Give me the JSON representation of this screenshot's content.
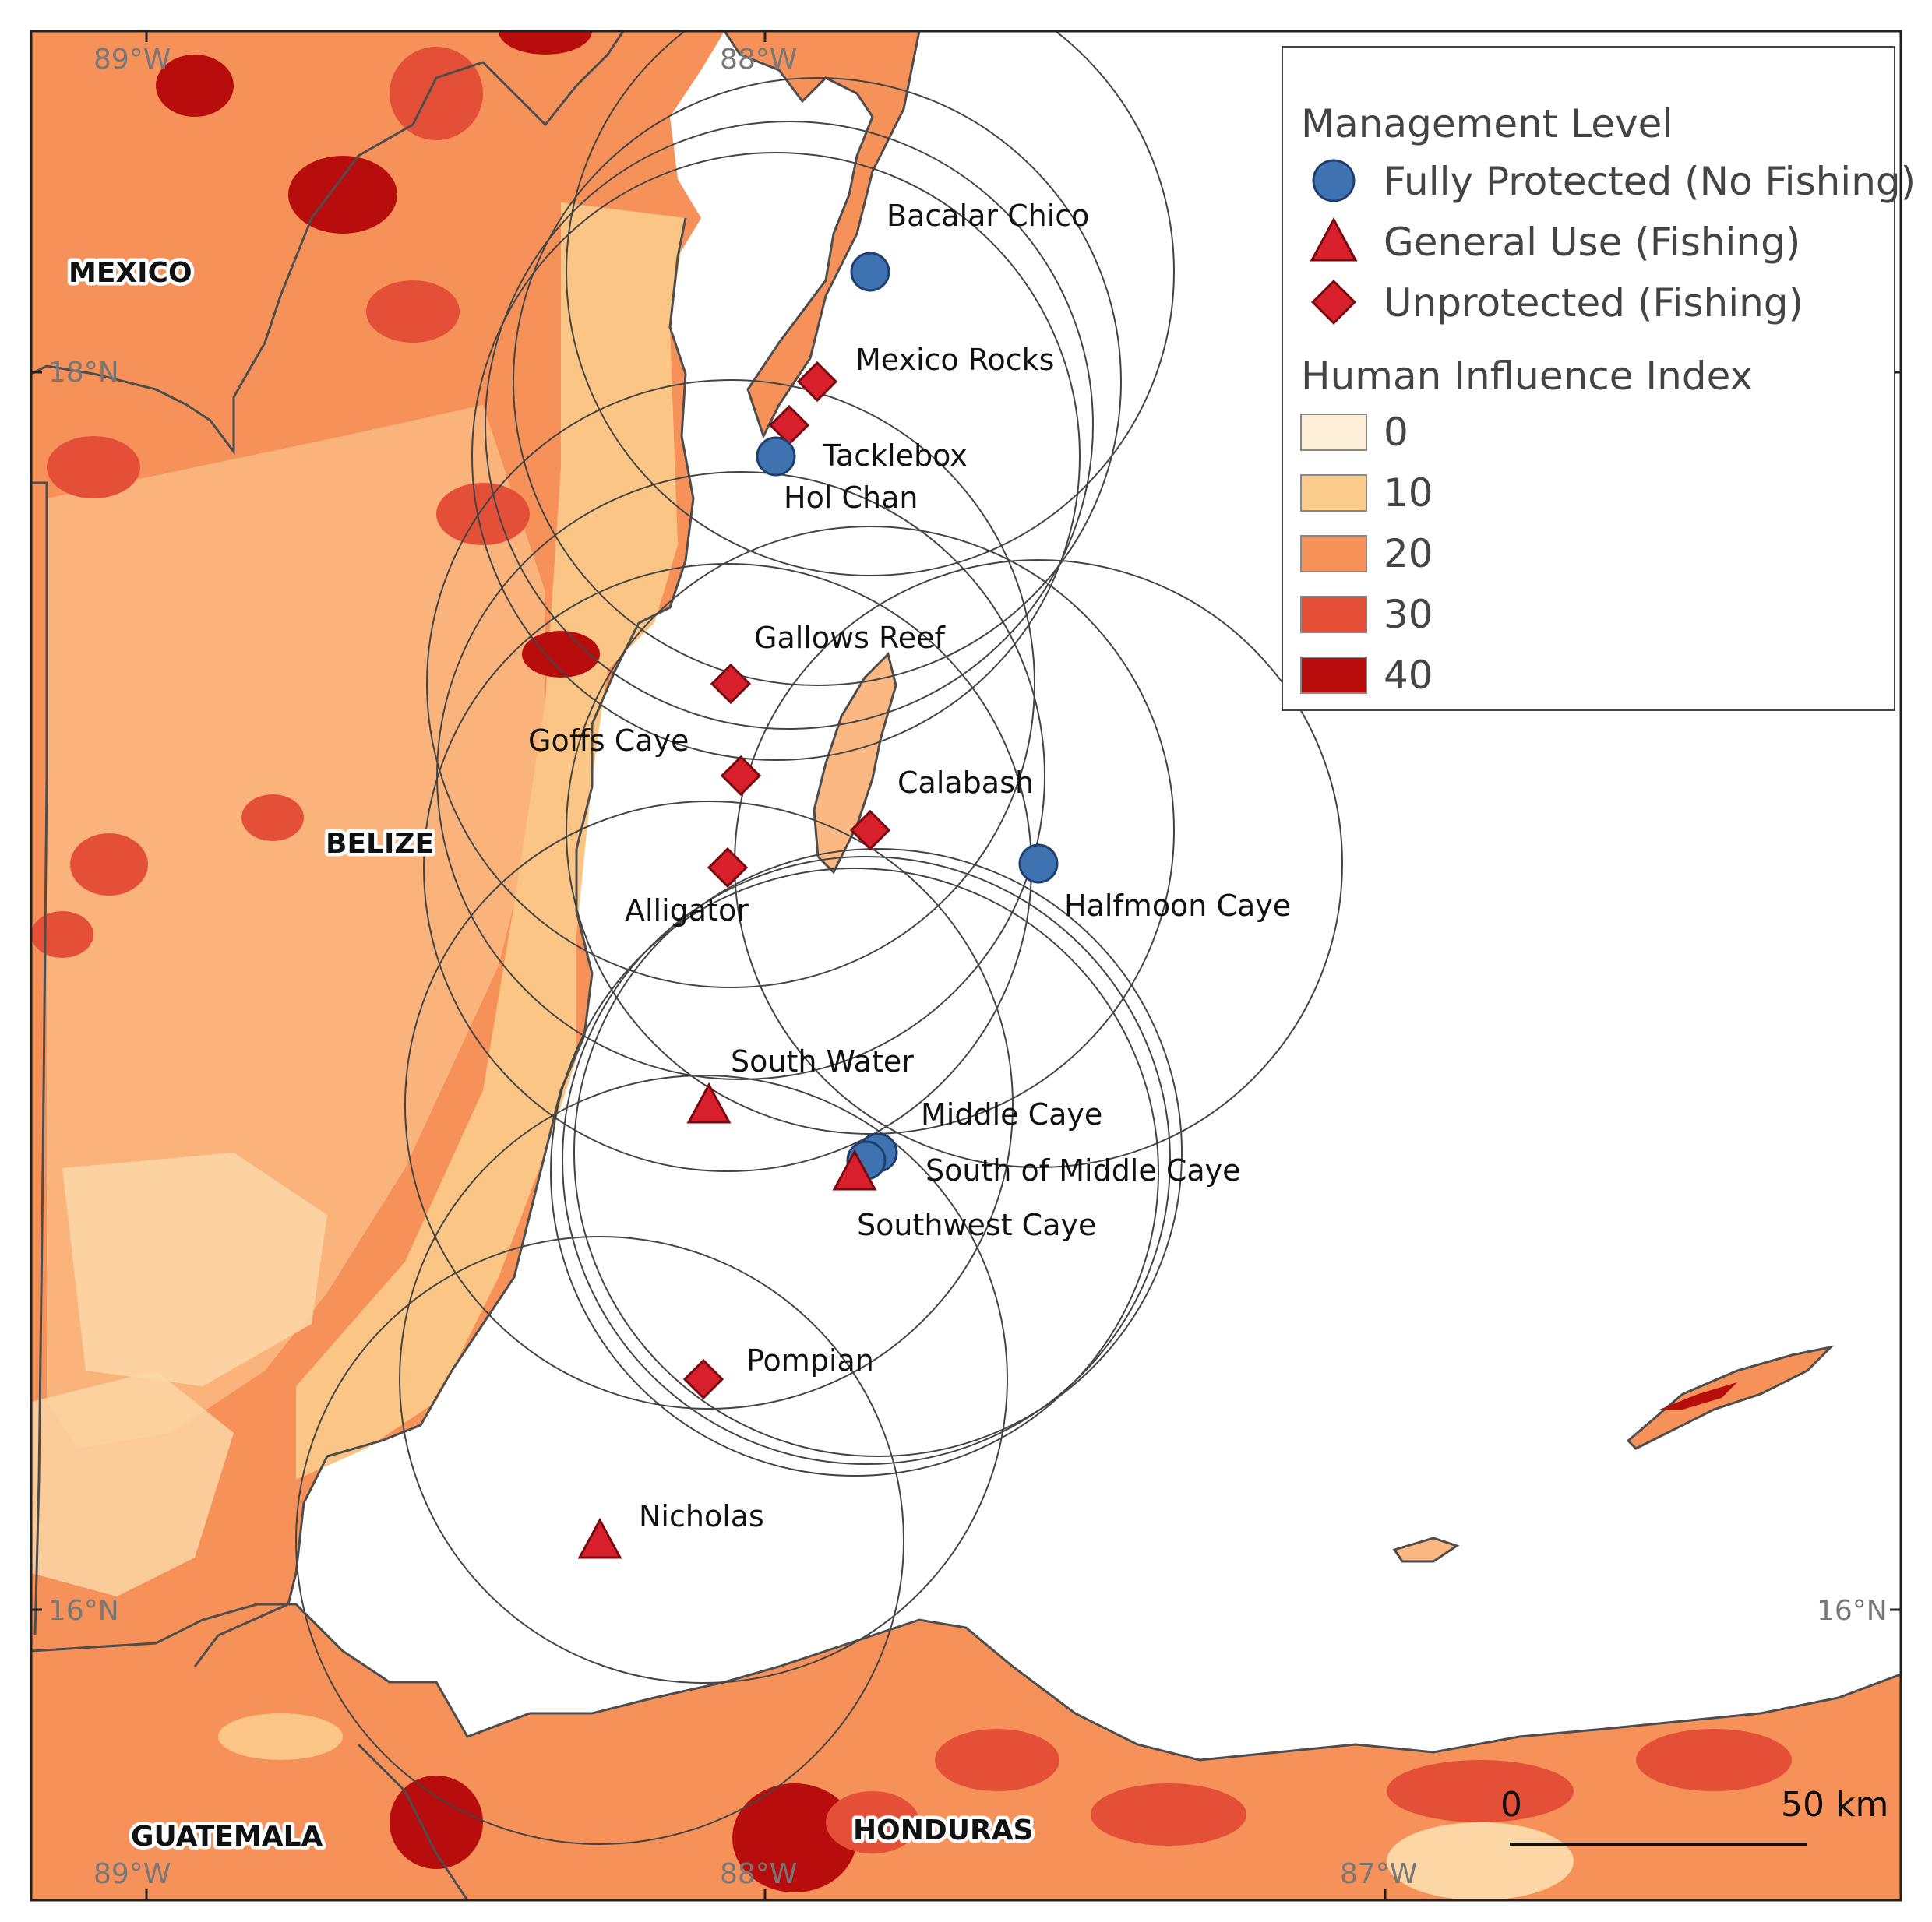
{
  "map": {
    "countries": {
      "mexico": "MEXICO",
      "belize": "BELIZE",
      "guatemala": "GUATEMALA",
      "honduras": "HONDURAS"
    },
    "graticule": {
      "top_left_lon": "89°W",
      "top_mid_lon": "88°W",
      "left_18": "18°N",
      "left_16": "16°N",
      "right_16": "16°N",
      "bottom_left_lon": "89°W",
      "bottom_mid_lon": "88°W",
      "bottom_right_lon": "87°W"
    },
    "sites": {
      "bacalar_chico": {
        "label": "Bacalar Chico",
        "management": "Fully Protected (No Fishing)"
      },
      "mexico_rocks": {
        "label": "Mexico Rocks",
        "management": "Unprotected (Fishing)"
      },
      "tacklebox": {
        "label": "Tacklebox",
        "management": "Unprotected (Fishing)"
      },
      "hol_chan": {
        "label": "Hol Chan",
        "management": "Fully Protected (No Fishing)"
      },
      "gallows_reef": {
        "label": "Gallows Reef",
        "management": "Unprotected (Fishing)"
      },
      "goffs_caye": {
        "label": "Goffs Caye",
        "management": "Unprotected (Fishing)"
      },
      "calabash": {
        "label": "Calabash",
        "management": "Unprotected (Fishing)"
      },
      "halfmoon_caye": {
        "label": "Halfmoon Caye",
        "management": "Fully Protected (No Fishing)"
      },
      "alligator": {
        "label": "Alligator",
        "management": "Unprotected (Fishing)"
      },
      "south_water": {
        "label": "South Water",
        "management": "General Use (Fishing)"
      },
      "middle_caye": {
        "label": "Middle Caye",
        "management": "Fully Protected (No Fishing)"
      },
      "south_of_middle_caye": {
        "label": "South of Middle Caye",
        "management": "Fully Protected (No Fishing)"
      },
      "southwest_caye": {
        "label": "Southwest Caye",
        "management": "General Use (Fishing)"
      },
      "pompian": {
        "label": "Pompian",
        "management": "Unprotected (Fishing)"
      },
      "nicholas": {
        "label": "Nicholas",
        "management": "General Use (Fishing)"
      }
    },
    "scale_bar": {
      "start_label": "0",
      "end_label": "50 km"
    }
  },
  "legend": {
    "management_title": "Management Level",
    "fully_protected": "Fully Protected (No Fishing)",
    "general_use": "General Use (Fishing)",
    "unprotected": "Unprotected (Fishing)",
    "influence_title": "Human Influence Index",
    "influence_levels": [
      {
        "label": "0",
        "color": "#fdeed8"
      },
      {
        "label": "10",
        "color": "#fbcc8b"
      },
      {
        "label": "20",
        "color": "#f6915a"
      },
      {
        "label": "30",
        "color": "#e44f37"
      },
      {
        "label": "40",
        "color": "#b80d0d"
      }
    ]
  },
  "colors": {
    "protected_marker": "#3f72b0",
    "fishing_marker": "#d7202c",
    "coastline": "#4d4d4d"
  }
}
